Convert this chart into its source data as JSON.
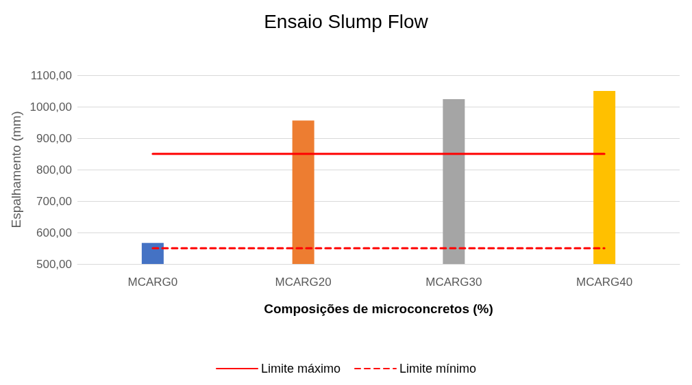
{
  "chart_data": {
    "type": "bar",
    "title": "Ensaio Slump Flow",
    "xlabel": "Composições de microconcretos (%)",
    "ylabel": "Espalhamento (mm)",
    "categories": [
      "MCARG0",
      "MCARG20",
      "MCARG30",
      "MCARG40"
    ],
    "series": [
      {
        "colors": [
          "#4472c4",
          "#ed7d31",
          "#a5a5a5",
          "#ffc000"
        ],
        "values": [
          567,
          956,
          1024,
          1050
        ]
      },
      {
        "type": "line",
        "name": "Limite máximo",
        "color": "#ff0000",
        "line_style": "solid",
        "values": [
          850,
          850,
          850,
          850
        ]
      },
      {
        "type": "line",
        "name": "Limite mínimo",
        "color": "#ff0000",
        "line_style": "dashed",
        "values": [
          550,
          550,
          550,
          550
        ]
      }
    ],
    "ylim": [
      500,
      1100
    ],
    "yticks": [
      {
        "value": 500,
        "label": "500,00"
      },
      {
        "value": 600,
        "label": "600,00"
      },
      {
        "value": 700,
        "label": "700,00"
      },
      {
        "value": 800,
        "label": "800,00"
      },
      {
        "value": 900,
        "label": "900,00"
      },
      {
        "value": 1000,
        "label": "1000,00"
      },
      {
        "value": 1100,
        "label": "1100,00"
      }
    ],
    "grid": "y",
    "legend": "bottom",
    "marker": "none"
  }
}
